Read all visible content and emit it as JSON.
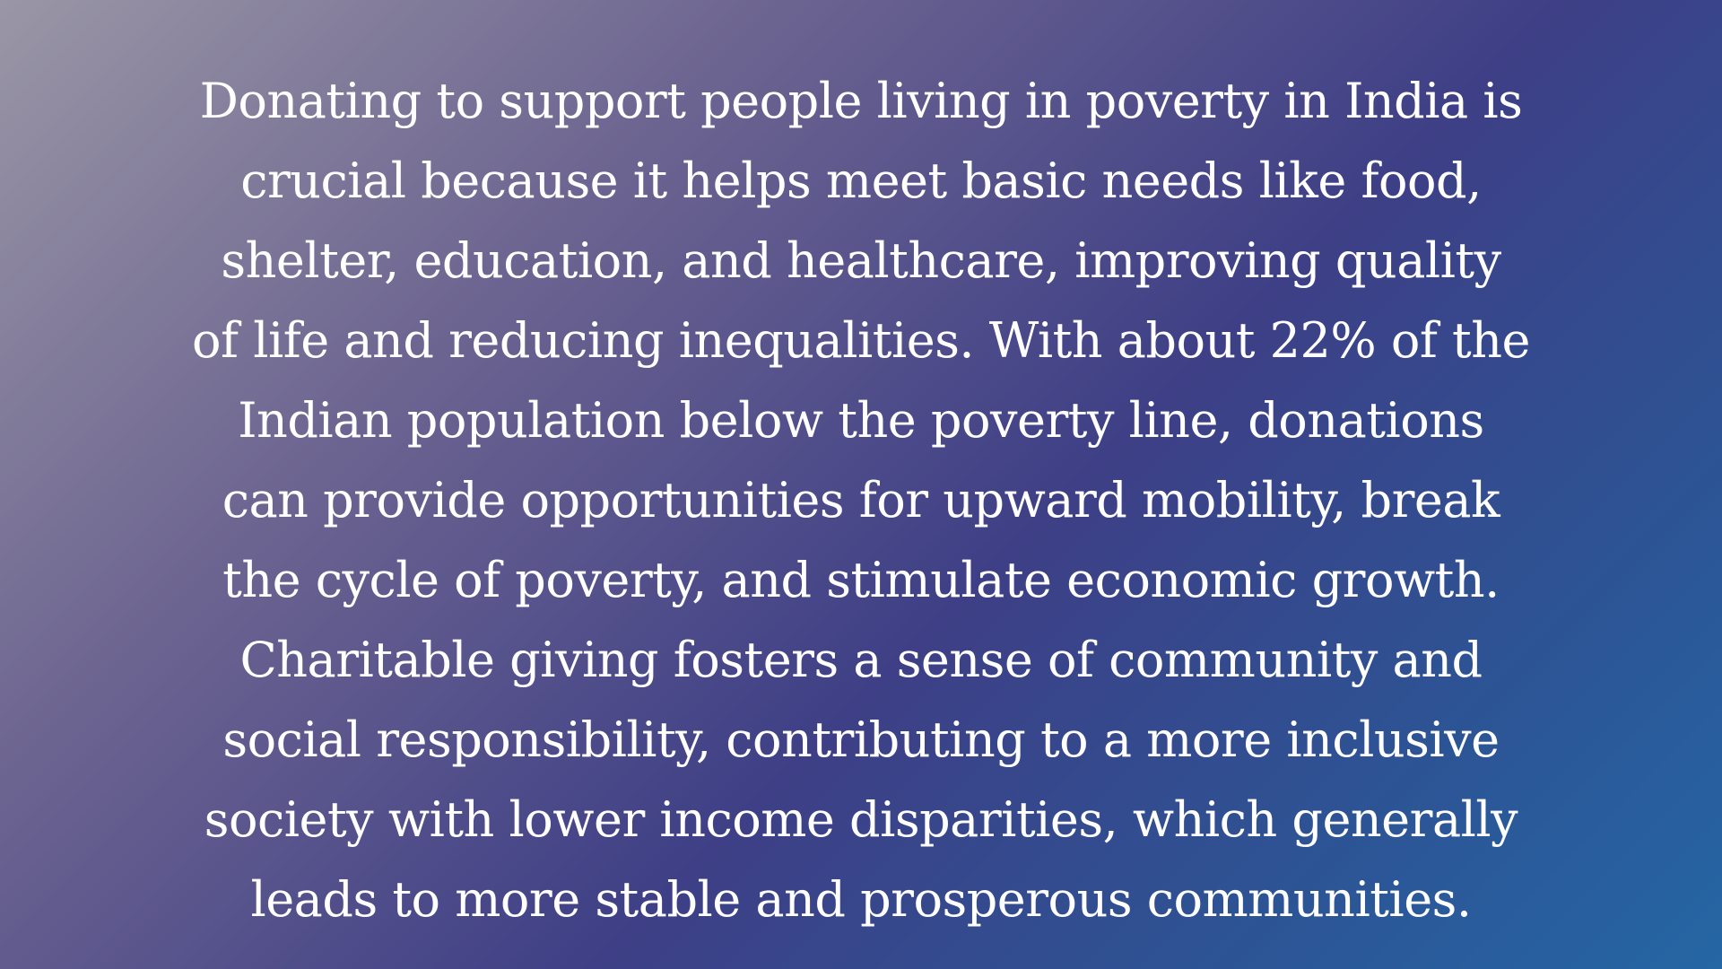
{
  "background": {
    "gradient_colors": [
      "#9a96a6",
      "#6b6390",
      "#3e3f86",
      "#2d5394",
      "#2566a4"
    ]
  },
  "text_color": "#ffffff",
  "paragraph": {
    "lines": [
      "Donating to support people living in poverty in India is",
      "crucial because it helps meet basic needs like food,",
      "shelter, education, and healthcare, improving quality",
      "of life and reducing inequalities. With about 22% of the",
      "Indian population below the poverty line, donations",
      "can provide opportunities for upward mobility, break",
      "the cycle of poverty, and stimulate economic growth.",
      "Charitable giving fosters a sense of community and",
      "social responsibility, contributing to a more inclusive",
      "society with lower income disparities, which generally",
      "leads to more stable and prosperous communities."
    ]
  }
}
